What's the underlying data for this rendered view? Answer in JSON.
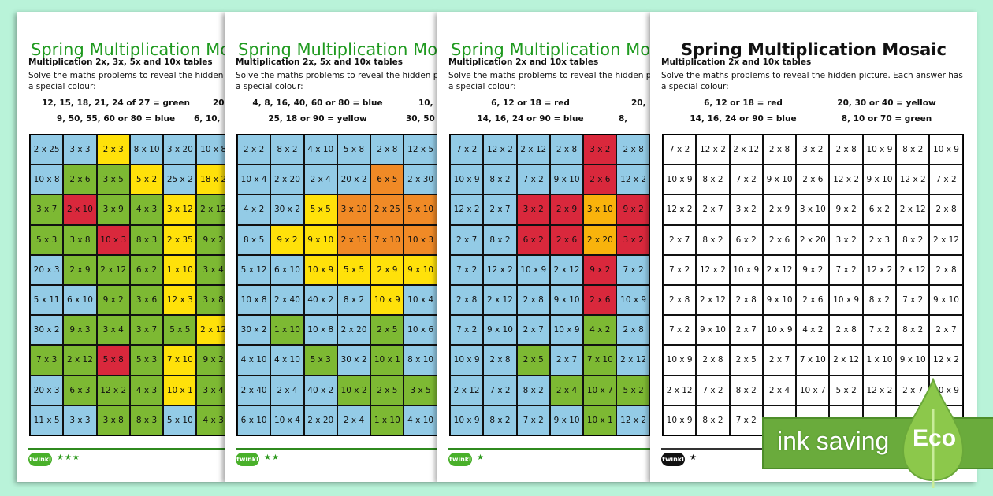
{
  "colors": {
    "b": "#93cbe6",
    "g": "#7db933",
    "y": "#ffe10a",
    "r": "#d9283c",
    "o": "#f08a26",
    "a": "#f9b30c",
    "w": "#ffffff",
    "background": "#b9f3d9",
    "eco_green": "#6aab3c"
  },
  "sheets": [
    {
      "title": "Spring Multiplication Mosaic",
      "subtitle": "Multiplication 2x, 3x, 5x and 10x tables",
      "instructions": "Solve the maths problems to reveal the hidden picture. Each answer has a special colour:",
      "legend": [
        "12, 15, 18, 21, 24 of 27 = green",
        "9, 50, 55, 60 or 80 = blue",
        "20",
        "6, 10,"
      ],
      "stars": "★★★",
      "logo": "twinkl",
      "grid": [
        [
          "2 x 25",
          "3 x 3",
          "2 x 3",
          "8 x 10",
          "3 x 20",
          "10 x 8"
        ],
        [
          "10 x 8",
          "2 x 6",
          "3 x 5",
          "5 x 2",
          "25 x 2",
          "18 x 2"
        ],
        [
          "3 x 7",
          "2 x 10",
          "3 x 9",
          "4 x 3",
          "3 x 12",
          "2 x 12"
        ],
        [
          "5 x 3",
          "3 x 8",
          "10 x 3",
          "8 x 3",
          "2 x 35",
          "9 x 2"
        ],
        [
          "20 x 3",
          "2 x 9",
          "2 x 12",
          "6 x 2",
          "1 x 10",
          "3 x 4"
        ],
        [
          "5 x 11",
          "6 x 10",
          "9 x 2",
          "3 x 6",
          "12 x 3",
          "3 x 8"
        ],
        [
          "30 x 2",
          "9 x 3",
          "3 x 4",
          "3 x 7",
          "5 x 5",
          "2 x 12"
        ],
        [
          "7 x 3",
          "2 x 12",
          "5 x 8",
          "5 x 3",
          "7 x 10",
          "9 x 2"
        ],
        [
          "20 x 3",
          "6 x 3",
          "12 x 2",
          "4 x 3",
          "10 x 1",
          "3 x 4"
        ],
        [
          "11 x 5",
          "3 x 3",
          "3 x 8",
          "8 x 3",
          "5 x 10",
          "4 x 3"
        ]
      ],
      "fills": [
        "bbybbb",
        "bggyby",
        "grggyg",
        "ggrgyg",
        "bgggyg",
        "bbggyg",
        "bggggyg",
        "ggrgyg",
        "bgggyg",
        "bbggbg"
      ]
    },
    {
      "title": "Spring Multiplication Mosaic",
      "subtitle": "Multiplication 2x, 5x and 10x tables",
      "instructions": "Solve the maths problems to reveal the hidden picture. Each answer has a special colour:",
      "legend": [
        "4, 8, 16, 40, 60 or 80 = blue",
        "25, 18 or 90 = yellow",
        "10,",
        "30, 50"
      ],
      "stars": "★★",
      "logo": "twinkl",
      "grid": [
        [
          "2 x 2",
          "8 x 2",
          "4 x 10",
          "5 x 8",
          "2 x 8",
          "12 x 5"
        ],
        [
          "10 x 4",
          "2 x 20",
          "2 x 4",
          "20 x 2",
          "6 x 5",
          "2 x 30"
        ],
        [
          "4 x 2",
          "30 x 2",
          "5 x 5",
          "3 x 10",
          "2 x 25",
          "5 x 10"
        ],
        [
          "8 x 5",
          "9 x 2",
          "9 x 10",
          "2 x 15",
          "7 x 10",
          "10 x 3"
        ],
        [
          "5 x 12",
          "6 x 10",
          "10 x 9",
          "5 x 5",
          "2 x 9",
          "9 x 10"
        ],
        [
          "10 x 8",
          "2 x 40",
          "40 x 2",
          "8 x 2",
          "10 x 9",
          "10 x 4"
        ],
        [
          "30 x 2",
          "1 x 10",
          "10 x 8",
          "2 x 20",
          "2 x 5",
          "10 x 6"
        ],
        [
          "4 x 10",
          "4 x 10",
          "5 x 3",
          "30 x 2",
          "10 x 1",
          "8 x 10"
        ],
        [
          "2 x 40",
          "2 x 4",
          "40 x 2",
          "10 x 2",
          "2 x 5",
          "3 x 5"
        ],
        [
          "6 x 10",
          "10 x 4",
          "2 x 20",
          "2 x 4",
          "1 x 10",
          "4 x 10"
        ]
      ],
      "fills": [
        "bbbbbb",
        "bbbbob",
        "bbyooo",
        "byyooo",
        "bbyyyy",
        "bbbbyb",
        "bgbbgb",
        "bbgbgb",
        "bbbggg",
        "bbbbgb"
      ]
    },
    {
      "title": "Spring Multiplication Mosaic",
      "subtitle": "Multiplication 2x and 10x tables",
      "instructions": "Solve the maths problems to reveal the hidden picture. Each answer has a special colour:",
      "legend": [
        "6, 12 or 18 = red",
        "14, 16, 24 or 90 = blue",
        "20,",
        "8,"
      ],
      "stars": "★",
      "logo": "twinkl",
      "grid": [
        [
          "7 x 2",
          "12 x 2",
          "2 x 12",
          "2 x 8",
          "3 x 2",
          "2 x 8"
        ],
        [
          "10 x 9",
          "8 x 2",
          "7 x 2",
          "9 x 10",
          "2 x 6",
          "12 x 2"
        ],
        [
          "12 x 2",
          "2 x 7",
          "3 x 2",
          "2 x 9",
          "3 x 10",
          "9 x 2"
        ],
        [
          "2 x 7",
          "8 x 2",
          "6 x 2",
          "2 x 6",
          "2 x 20",
          "3 x 2"
        ],
        [
          "7 x 2",
          "12 x 2",
          "10 x 9",
          "2 x 12",
          "9 x 2",
          "7 x 2"
        ],
        [
          "2 x 8",
          "2 x 12",
          "2 x 8",
          "9 x 10",
          "2 x 6",
          "10 x 9"
        ],
        [
          "7 x 2",
          "9 x 10",
          "2 x 7",
          "10 x 9",
          "4 x 2",
          "2 x 8"
        ],
        [
          "10 x 9",
          "2 x 8",
          "2 x 5",
          "2 x 7",
          "7 x 10",
          "2 x 12"
        ],
        [
          "2 x 12",
          "7 x 2",
          "8 x 2",
          "2 x 4",
          "10 x 7",
          "5 x 2"
        ],
        [
          "10 x 9",
          "8 x 2",
          "7 x 2",
          "9 x 10",
          "10 x 1",
          "12 x 2"
        ]
      ],
      "fills": [
        "bbbbrb",
        "bbbbrb",
        "bbrrar",
        "bbrrar",
        "bbbbrb",
        "bbbbrb",
        "bbbbgb",
        "bbgbgb",
        "bbbggg",
        "bbbbgb"
      ]
    },
    {
      "title": "Spring Multiplication Mosaic",
      "subtitle": "Multiplication 2x and 10x tables",
      "instructions": "Solve the maths problems to reveal the hidden picture. Each answer has a special colour:",
      "legend": [
        "6, 12 or 18 = red",
        "14, 16, 24 or 90 = blue",
        "20, 30 or 40 = yellow",
        "8, 10 or 70 = green"
      ],
      "stars": "★",
      "logo": "twinkl",
      "grid": [
        [
          "7 x 2",
          "12 x 2",
          "2 x 12",
          "2 x 8",
          "3 x 2",
          "2 x 8",
          "10 x 9",
          "8 x 2",
          "10 x 9"
        ],
        [
          "10 x 9",
          "8 x 2",
          "7 x 2",
          "9 x 10",
          "2 x 6",
          "12 x 2",
          "9 x 10",
          "12 x 2",
          "7 x 2"
        ],
        [
          "12 x 2",
          "2 x 7",
          "3 x 2",
          "2 x 9",
          "3 x 10",
          "9 x 2",
          "6 x 2",
          "2 x 12",
          "2 x 8"
        ],
        [
          "2 x 7",
          "8 x 2",
          "6 x 2",
          "2 x 6",
          "2 x 20",
          "3 x 2",
          "2 x 3",
          "8 x 2",
          "2 x 12"
        ],
        [
          "7 x 2",
          "12 x 2",
          "10 x 9",
          "2 x 12",
          "9 x 2",
          "7 x 2",
          "12 x 2",
          "2 x 12",
          "2 x 8"
        ],
        [
          "2 x 8",
          "2 x 12",
          "2 x 8",
          "9 x 10",
          "2 x 6",
          "10 x 9",
          "8 x 2",
          "7 x 2",
          "9 x 10"
        ],
        [
          "7 x 2",
          "9 x 10",
          "2 x 7",
          "10 x 9",
          "4 x 2",
          "2 x 8",
          "7 x 2",
          "8 x 2",
          "2 x 7"
        ],
        [
          "10 x 9",
          "2 x 8",
          "2 x 5",
          "2 x 7",
          "7 x 10",
          "2 x 12",
          "1 x 10",
          "9 x 10",
          "12 x 2"
        ],
        [
          "2 x 12",
          "7 x 2",
          "8 x 2",
          "2 x 4",
          "10 x 7",
          "5 x 2",
          "12 x 2",
          "2 x 7",
          "10 x 9"
        ],
        [
          "10 x 9",
          "8 x 2",
          "7 x 2",
          "",
          "",
          "",
          "",
          "",
          ""
        ]
      ],
      "fills": [
        "wwwwwwwww",
        "wwwwwwwww",
        "wwwwwwwww",
        "wwwwwwwww",
        "wwwwwwwww",
        "wwwwwwwww",
        "wwwwwwwww",
        "wwwwwwwww",
        "wwwwwwwww",
        "wwwwwwwww"
      ]
    }
  ],
  "eco_badge": {
    "label": "ink saving",
    "word": "Eco"
  }
}
